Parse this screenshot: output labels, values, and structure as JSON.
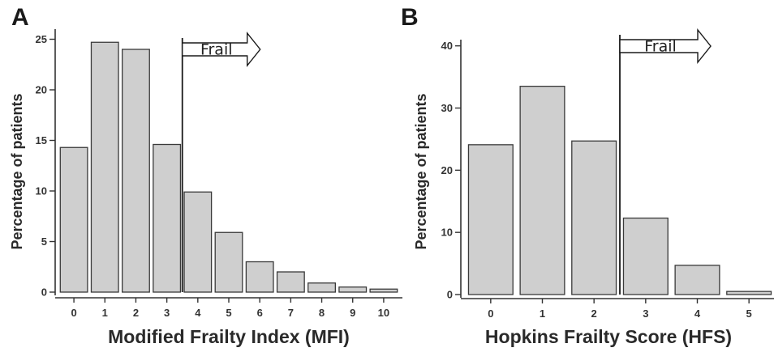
{
  "chart_data": [
    {
      "type": "bar",
      "panel_label": "A",
      "categories": [
        "0",
        "1",
        "2",
        "3",
        "4",
        "5",
        "6",
        "7",
        "8",
        "9",
        "10"
      ],
      "values": [
        14.3,
        24.7,
        24.0,
        14.6,
        9.9,
        5.9,
        3.0,
        2.0,
        0.9,
        0.5,
        0.3
      ],
      "xlabel": "Modified Frailty Index (MFI)",
      "ylabel": "Percentage of patients",
      "ylim": [
        0,
        26
      ],
      "yticks": [
        0,
        5,
        10,
        15,
        20,
        25
      ],
      "grid": false,
      "legend": "none",
      "threshold_between": [
        "3",
        "4"
      ],
      "annotation": "Frail",
      "bar_color": "#cfcfcf"
    },
    {
      "type": "bar",
      "panel_label": "B",
      "categories": [
        "0",
        "1",
        "2",
        "3",
        "4",
        "5"
      ],
      "values": [
        24.1,
        33.5,
        24.7,
        12.3,
        4.7,
        0.5
      ],
      "xlabel": "Hopkins Frailty Score (HFS)",
      "ylabel": "Percentage of patients",
      "ylim": [
        0,
        41
      ],
      "yticks": [
        0,
        10,
        20,
        30,
        40
      ],
      "grid": false,
      "legend": "none",
      "threshold_between": [
        "2",
        "3"
      ],
      "annotation": "Frail",
      "bar_color": "#cfcfcf"
    }
  ]
}
